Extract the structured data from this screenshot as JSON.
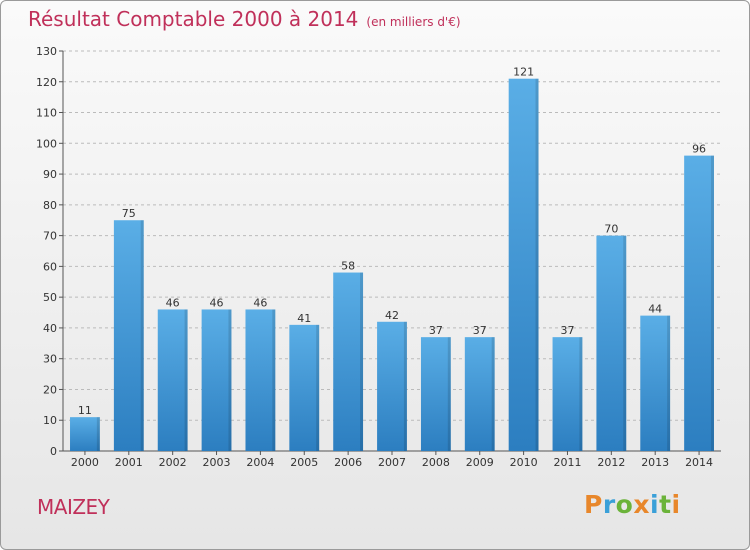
{
  "header": {
    "title": "Résultat Comptable 2000 à 2014",
    "subtitle": "(en milliers d'€)"
  },
  "footer": {
    "town": "MAIZEY",
    "logo": "Proxiti",
    "logo_colors": [
      "#e8872b",
      "#3aa0d8",
      "#6bb33a",
      "#e8872b",
      "#3aa0d8",
      "#6bb33a",
      "#e8872b"
    ]
  },
  "colors": {
    "bar_top": "#5aaee6",
    "bar_bottom": "#2c7ec0",
    "title": "#c0305a"
  },
  "chart_data": {
    "type": "bar",
    "categories": [
      "2000",
      "2001",
      "2002",
      "2003",
      "2004",
      "2005",
      "2006",
      "2007",
      "2008",
      "2009",
      "2010",
      "2011",
      "2012",
      "2013",
      "2014"
    ],
    "values": [
      11,
      75,
      46,
      46,
      46,
      41,
      58,
      42,
      37,
      37,
      121,
      37,
      70,
      44,
      96
    ],
    "yticks": [
      0,
      10,
      20,
      30,
      40,
      50,
      60,
      70,
      80,
      90,
      100,
      110,
      120,
      130
    ],
    "ylim": [
      0,
      130
    ],
    "grid": true,
    "grid_style": "dashed horizontal"
  }
}
